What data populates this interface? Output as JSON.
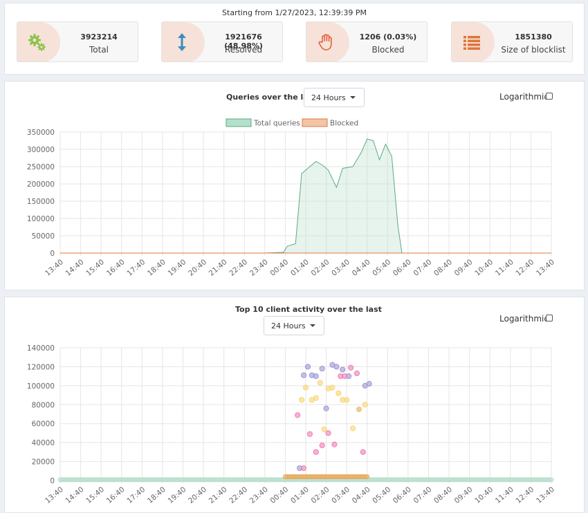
{
  "header": {
    "since": "Starting from 1/27/2023, 12:39:39 PM"
  },
  "stats": [
    {
      "value": "3923214",
      "label": "Total",
      "icon": "gears-icon",
      "color": "#8bc34a"
    },
    {
      "value": "1921676 (48.98%)",
      "label": "Resolved",
      "icon": "arrows-vertical-icon",
      "color": "#3c8dbc"
    },
    {
      "value": "1206 (0.03%)",
      "label": "Blocked",
      "icon": "hand-icon",
      "color": "#e35f3f"
    },
    {
      "value": "1851380",
      "label": "Size of blocklist",
      "icon": "list-icon",
      "color": "#e0743b"
    }
  ],
  "queries_panel": {
    "title": "Queries over the last",
    "range_selected": "24 Hours",
    "logarithmic_label": "Logarithmic",
    "legend": [
      {
        "name": "Total queries",
        "color": "#b6dfcb",
        "stroke": "#5aa983"
      },
      {
        "name": "Blocked",
        "color": "#f3c5a7",
        "stroke": "#e0743b"
      }
    ]
  },
  "clients_panel": {
    "title": "Top 10 client activity over the last",
    "range_selected": "24 Hours",
    "logarithmic_label": "Logarithmic"
  },
  "chart_data": [
    {
      "type": "area",
      "title": "Queries over the last",
      "x": [
        "13:40",
        "14:40",
        "15:40",
        "16:40",
        "17:40",
        "18:40",
        "19:40",
        "20:40",
        "21:40",
        "22:40",
        "23:40",
        "00:40",
        "01:40",
        "02:40",
        "03:40",
        "04:40",
        "05:40",
        "06:40",
        "07:40",
        "08:40",
        "09:40",
        "10:40",
        "11:40",
        "12:40",
        "13:40"
      ],
      "ylim": [
        0,
        350000
      ],
      "yticks": [
        0,
        50000,
        100000,
        150000,
        200000,
        250000,
        300000,
        350000
      ],
      "series": [
        {
          "name": "Total queries",
          "points": [
            [
              0,
              0
            ],
            [
              10,
              0
            ],
            [
              10.9,
              2000
            ],
            [
              11.1,
              20000
            ],
            [
              11.5,
              27000
            ],
            [
              11.8,
              230000
            ],
            [
              12.2,
              250000
            ],
            [
              12.5,
              265000
            ],
            [
              12.8,
              255000
            ],
            [
              13.1,
              240000
            ],
            [
              13.5,
              190000
            ],
            [
              13.8,
              245000
            ],
            [
              14.3,
              250000
            ],
            [
              14.7,
              290000
            ],
            [
              15.0,
              330000
            ],
            [
              15.3,
              325000
            ],
            [
              15.6,
              270000
            ],
            [
              15.9,
              315000
            ],
            [
              16.2,
              280000
            ],
            [
              16.5,
              80000
            ],
            [
              16.7,
              0
            ],
            [
              24,
              0
            ]
          ]
        },
        {
          "name": "Blocked",
          "points": [
            [
              0,
              0
            ],
            [
              24,
              0
            ]
          ]
        }
      ],
      "grid": true,
      "legend": "top"
    },
    {
      "type": "scatter",
      "title": "Top 10 client activity over the last",
      "x": [
        "13:40",
        "14:40",
        "15:40",
        "16:40",
        "17:40",
        "18:40",
        "19:40",
        "20:40",
        "21:40",
        "22:40",
        "23:40",
        "00:40",
        "01:40",
        "02:40",
        "03:40",
        "04:40",
        "05:40",
        "06:40",
        "07:40",
        "08:40",
        "09:40",
        "10:40",
        "11:40",
        "12:40",
        "13:40"
      ],
      "ylim": [
        0,
        140000
      ],
      "yticks": [
        0,
        20000,
        40000,
        60000,
        80000,
        100000,
        120000,
        140000
      ],
      "series": [
        {
          "color": "#9f96d6",
          "points": [
            [
              11.7,
              13000
            ],
            [
              11.9,
              111000
            ],
            [
              12.1,
              120000
            ],
            [
              12.3,
              111000
            ],
            [
              12.5,
              110000
            ],
            [
              12.8,
              118000
            ],
            [
              13.0,
              76000
            ],
            [
              13.3,
              122000
            ],
            [
              13.5,
              120000
            ],
            [
              13.8,
              117000
            ],
            [
              14.1,
              110000
            ],
            [
              14.6,
              75000
            ],
            [
              14.9,
              100000
            ],
            [
              15.1,
              102000
            ]
          ]
        },
        {
          "color": "#f6d675",
          "points": [
            [
              11.8,
              85000
            ],
            [
              12.0,
              98000
            ],
            [
              12.3,
              85000
            ],
            [
              12.5,
              87000
            ],
            [
              12.7,
              103000
            ],
            [
              12.9,
              54000
            ],
            [
              13.1,
              97000
            ],
            [
              13.3,
              98000
            ],
            [
              13.6,
              92000
            ],
            [
              13.8,
              85000
            ],
            [
              14.0,
              85000
            ],
            [
              14.3,
              55000
            ],
            [
              14.6,
              75000
            ],
            [
              14.9,
              80000
            ]
          ]
        },
        {
          "color": "#f07eb4",
          "points": [
            [
              11.6,
              69000
            ],
            [
              11.9,
              13000
            ],
            [
              12.2,
              49000
            ],
            [
              12.5,
              30000
            ],
            [
              12.8,
              37000
            ],
            [
              13.1,
              50000
            ],
            [
              13.4,
              38000
            ],
            [
              13.7,
              110000
            ],
            [
              13.9,
              110000
            ],
            [
              14.2,
              119000
            ],
            [
              14.5,
              113000
            ],
            [
              14.8,
              30000
            ]
          ]
        },
        {
          "color": "#b6dfcb",
          "points": [
            [
              0,
              800
            ],
            [
              11,
              800
            ],
            [
              17,
              800
            ],
            [
              24,
              800
            ]
          ]
        },
        {
          "color": "#e6a95a",
          "points": [
            [
              11,
              4000
            ],
            [
              12,
              4500
            ],
            [
              13,
              4500
            ],
            [
              14,
              4500
            ],
            [
              15,
              4500
            ]
          ]
        }
      ],
      "grid": true
    }
  ]
}
